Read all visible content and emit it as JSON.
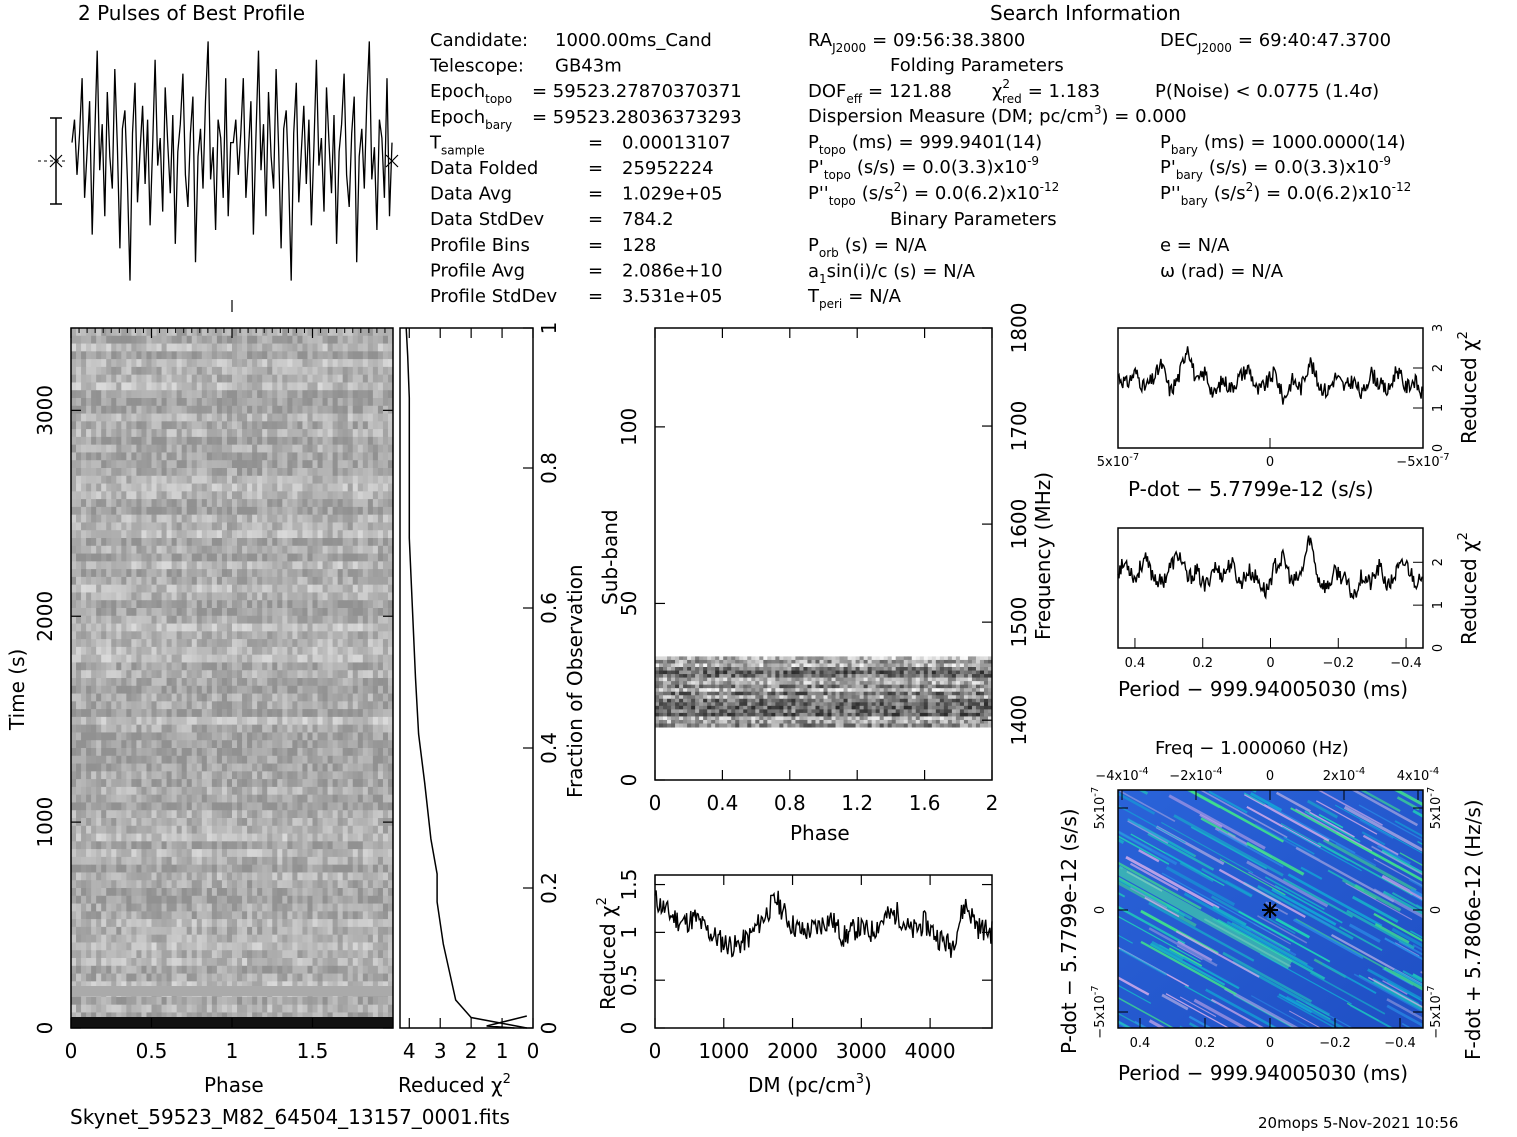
{
  "header": {
    "profile_title": "2 Pulses of Best Profile",
    "search_title": "Search Information",
    "folding_title": "Folding Parameters",
    "binary_title": "Binary Parameters"
  },
  "info_left": [
    {
      "label": "Candidate:",
      "value": "1000.00ms_Cand"
    },
    {
      "label": "Telescope:",
      "value": "GB43m"
    },
    {
      "label": "Epoch",
      "sub": "topo",
      "value": "= 59523.27870370371"
    },
    {
      "label": "Epoch",
      "sub": "bary",
      "value": "= 59523.28036373293"
    },
    {
      "label": "T",
      "sub": "sample",
      "eq": "=",
      "value": "0.00013107"
    },
    {
      "label": "Data Folded",
      "eq": "=",
      "value": "25952224"
    },
    {
      "label": "Data Avg",
      "eq": "=",
      "value": "1.029e+05"
    },
    {
      "label": "Data StdDev",
      "eq": "=",
      "value": "784.2"
    },
    {
      "label": "Profile Bins",
      "eq": "=",
      "value": "128"
    },
    {
      "label": "Profile Avg",
      "eq": "=",
      "value": "2.086e+10"
    },
    {
      "label": "Profile StdDev",
      "eq": "=",
      "value": "3.531e+05"
    }
  ],
  "search_info": {
    "ra": "RA",
    "ra_sub": "J2000",
    "ra_value": "= 09:56:38.3800",
    "dec": "DEC",
    "dec_sub": "J2000",
    "dec_value": "= 69:40:47.3700",
    "dof": "DOF",
    "dof_sub": "eff",
    "dof_value": "= 121.88",
    "chi": "χ",
    "chi_sup": "2",
    "chi_sub": "red",
    "chi_value": "= 1.183",
    "pnoise": "P(Noise) < 0.0775   (1.4σ)",
    "dm_line": "Dispersion Measure (DM; pc/cm",
    "dm_sup": "3",
    "dm_tail": ") = 0.000",
    "ptopo_label": "P",
    "ptopo_sub": "topo",
    "ptopo_value": "(ms) =  999.9401(14)",
    "pbary_label": "P",
    "pbary_sub": "bary",
    "pbary_value": "(ms) =  1000.0000(14)",
    "pdtopo_label": "P'",
    "pdtopo_sub": "topo",
    "pdtopo_value": "(s/s) = 0.0(3.3)x10",
    "pdtopo_exp": "-9",
    "pdbary_label": "P'",
    "pdbary_sub": "bary",
    "pdbary_value": "(s/s) = 0.0(3.3)x10",
    "pdbary_exp": "-9",
    "pddtopo_label": "P''",
    "pddtopo_sub": "topo",
    "pddtopo_value": "(s/s",
    "pddtopo_sup": "2",
    "pddtopo_tail": ") = 0.0(6.2)x10",
    "pddtopo_exp": "-12",
    "pddbary_label": "P''",
    "pddbary_sub": "bary",
    "pddbary_value": "(s/s",
    "pddbary_sup": "2",
    "pddbary_tail": ") = 0.0(6.2)x10",
    "pddbary_exp": "-12",
    "porb_label": "P",
    "porb_sub": "orb",
    "porb_value": "(s) = N/A",
    "a1_label": "a",
    "a1_sub": "1",
    "a1_value": "sin(i)/c (s) = N/A",
    "tperi_label": "T",
    "tperi_sub": "peri",
    "tperi_value": "= N/A",
    "e_value": "e = N/A",
    "omega_value": "ω (rad) = N/A"
  },
  "footer": {
    "filename": "Skynet_59523_M82_64504_13157_0001.fits",
    "stamp": "20mops  5-Nov-2021 10:56"
  },
  "chart_data": [
    {
      "id": "profile",
      "type": "line",
      "title": "2 Pulses of Best Profile",
      "x": [
        0,
        1,
        2,
        3,
        4,
        5,
        6,
        7,
        8,
        9,
        10,
        11,
        12,
        13,
        14,
        15,
        16,
        17,
        18,
        19,
        20,
        21,
        22,
        23,
        24,
        25,
        26,
        27,
        28,
        29,
        30,
        31,
        32,
        33,
        34,
        35,
        36,
        37,
        38,
        39,
        40,
        41,
        42,
        43,
        44,
        45,
        46,
        47,
        48,
        49,
        50,
        51,
        52,
        53,
        54,
        55,
        56,
        57,
        58,
        59,
        60,
        61,
        62,
        63
      ],
      "values": [
        0.4,
        0.9,
        -0.3,
        0.6,
        1.8,
        -0.8,
        0.2,
        1.3,
        -1.6,
        0.5,
        2.4,
        -0.2,
        0.8,
        -1.2,
        1.5,
        0.1,
        -0.6,
        2.0,
        0.3,
        -1.9,
        0.7,
        1.1,
        -0.4,
        -2.6,
        0.6,
        1.7,
        -0.9,
        0.2,
        1.2,
        -0.5,
        0.9,
        -1.4,
        0.3,
        2.2,
        -0.1,
        0.5,
        -1.1,
        1.6,
        0.4,
        -0.7,
        1.0,
        -1.8,
        0.2,
        0.8,
        1.9,
        -0.3,
        -1.0,
        0.6,
        1.4,
        -2.2,
        0.1,
        0.7,
        -0.6,
        1.3,
        2.6,
        -0.4,
        0.3,
        -1.5,
        0.9,
        0.5,
        -0.8,
        1.8,
        -1.2,
        0.4
      ],
      "xlabel": "",
      "ylabel": "",
      "error_bar": "1 sigma"
    },
    {
      "id": "time_phase",
      "type": "heatmap",
      "xlabel": "Phase",
      "ylabel": "Time (s)",
      "xticks": [
        "0",
        "0.5",
        "1",
        "1.5"
      ],
      "yticks": [
        "0",
        "1000",
        "2000",
        "3000"
      ],
      "xlim": [
        0,
        2
      ],
      "ylim": [
        0,
        3400
      ],
      "colormap": "grayscale"
    },
    {
      "id": "reduced_chi2_time",
      "type": "line",
      "xlabel": "Reduced χ2",
      "ylabel": "Fraction of Observation",
      "xticks": [
        "4",
        "3",
        "2",
        "1",
        "0"
      ],
      "yticks": [
        "0",
        "0.2",
        "0.4",
        "0.6",
        "0.8",
        "1"
      ],
      "xlim": [
        4.3,
        0
      ],
      "ylim": [
        0,
        1
      ],
      "x": [
        0.2,
        0.8,
        1.4,
        2.0,
        2.5,
        2.7,
        2.9,
        3.1,
        3.1,
        3.3,
        3.5,
        3.7,
        3.8,
        3.9,
        4.0,
        4.0,
        4.0,
        4.0,
        4.05,
        4.1
      ],
      "y": [
        0,
        0.005,
        0.01,
        0.015,
        0.04,
        0.08,
        0.12,
        0.18,
        0.22,
        0.27,
        0.35,
        0.42,
        0.5,
        0.6,
        0.7,
        0.76,
        0.82,
        0.9,
        0.96,
        1.0
      ]
    },
    {
      "id": "subband_phase",
      "type": "heatmap",
      "xlabel": "Phase",
      "ylabel": "Sub-band",
      "y2label": "Frequency (MHz)",
      "xticks": [
        "0",
        "0.4",
        "0.8",
        "1.2",
        "1.6",
        "2"
      ],
      "yticks": [
        "0",
        "50",
        "100"
      ],
      "y2ticks": [
        "1400",
        "1500",
        "1600",
        "1700",
        "1800"
      ],
      "xlim": [
        0,
        2
      ],
      "ylim": [
        0,
        128
      ],
      "y2lim": [
        1339,
        1800
      ],
      "band": [
        15,
        35
      ]
    },
    {
      "id": "dm_chi2",
      "type": "line",
      "xlabel": "DM (pc/cm3)",
      "ylabel": "Reduced χ2",
      "xticks": [
        "0",
        "1000",
        "2000",
        "3000",
        "4000"
      ],
      "yticks": [
        "0",
        "0.5",
        "1",
        "1.5"
      ],
      "xlim": [
        0,
        4900
      ],
      "ylim": [
        0,
        1.6
      ],
      "x": [
        0,
        200,
        400,
        600,
        800,
        1000,
        1200,
        1400,
        1600,
        1800,
        2000,
        2200,
        2400,
        2600,
        2800,
        3000,
        3200,
        3400,
        3600,
        3800,
        4000,
        4200,
        4400,
        4600,
        4800,
        4900
      ],
      "values": [
        1.35,
        1.2,
        1.1,
        1.15,
        1.0,
        0.9,
        0.85,
        0.95,
        1.15,
        1.35,
        1.1,
        1.0,
        1.05,
        1.15,
        0.95,
        1.05,
        1.0,
        1.15,
        1.2,
        1.0,
        1.1,
        0.95,
        0.85,
        1.3,
        1.05,
        1.0
      ]
    },
    {
      "id": "pdot_chi2",
      "type": "line",
      "xlabel": "P-dot − 5.7799e-12 (s/s)",
      "ylabel": "Reduced χ2",
      "xticks": [
        "5x10",
        "0",
        "−5x10"
      ],
      "xtick_exp": "-7",
      "yticks": [
        "0",
        "1",
        "2",
        "3"
      ],
      "xlim": [
        5e-07,
        -5e-07
      ],
      "ylim": [
        0,
        3
      ],
      "values": [
        1.8,
        1.6,
        1.9,
        1.5,
        1.7,
        2.1,
        1.4,
        1.8,
        2.6,
        1.6,
        1.9,
        1.3,
        1.7,
        1.5,
        1.8,
        2.0,
        1.4,
        1.6,
        1.9,
        1.2,
        1.7,
        1.5,
        2.2,
        1.6,
        1.4,
        1.8,
        1.5,
        1.7,
        1.3,
        1.9,
        1.6,
        1.4,
        2.0,
        1.5,
        1.7,
        1.3
      ]
    },
    {
      "id": "period_chi2",
      "type": "line",
      "xlabel": "Period − 999.94005030 (ms)",
      "ylabel": "Reduced χ2",
      "xticks": [
        "0.4",
        "0.2",
        "0",
        "−0.2",
        "−0.4"
      ],
      "yticks": [
        "0",
        "1",
        "2"
      ],
      "xlim": [
        0.45,
        -0.45
      ],
      "ylim": [
        0,
        2.8
      ],
      "values": [
        1.8,
        2.0,
        1.6,
        2.1,
        1.7,
        1.5,
        1.9,
        2.2,
        1.6,
        1.8,
        1.4,
        1.9,
        1.7,
        2.0,
        1.5,
        1.8,
        1.6,
        1.3,
        1.9,
        2.1,
        1.5,
        1.7,
        2.6,
        1.6,
        1.4,
        1.8,
        1.6,
        1.2,
        1.7,
        1.5,
        1.9,
        1.4,
        1.8,
        2.0,
        1.6,
        1.5
      ]
    },
    {
      "id": "pdot_period",
      "type": "heatmap",
      "title": "Freq − 1.000060 (Hz)",
      "xlabel": "Period − 999.94005030 (ms)",
      "ylabel": "P-dot − 5.7799e-12 (s/s)",
      "y2label": "F-dot + 5.7806e-12 (Hz/s)",
      "xticks": [
        "0.4",
        "0.2",
        "0",
        "−0.2",
        "−0.4"
      ],
      "x2ticks": [
        "−4x10",
        "−2x10",
        "0",
        "2x10",
        "4x10"
      ],
      "x2tick_exp": "-4",
      "yticks": [
        "5x10",
        "0",
        "−5x10"
      ],
      "y2ticks": [
        "−5x10",
        "0",
        "5x10"
      ],
      "ytick_exp": "-7",
      "colormap": "rainbow",
      "marker": "best"
    }
  ]
}
